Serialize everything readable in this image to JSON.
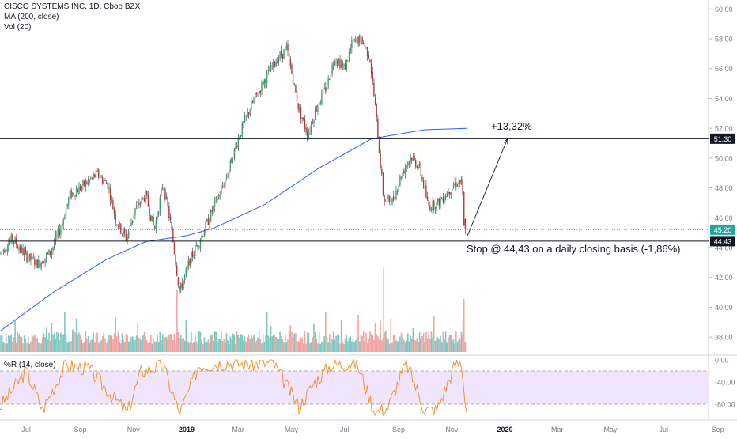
{
  "legend": {
    "title": "CISCO SYSTEMS INC, 1D, Cboe BZX",
    "ma": "MA (200, close)",
    "vol": "Vol (20)",
    "wr": "%R (14, close)"
  },
  "annotations": {
    "target": "+13,32%",
    "stop": "Stop @ 44,43 on a daily closing basis (-1,86%)"
  },
  "chart_data": [
    {
      "type": "candlestick",
      "title": "CISCO SYSTEMS INC, 1D, Cboe BZX",
      "ylim": [
        37.0,
        60.6
      ],
      "y_ticks": [
        "60.00",
        "58.00",
        "56.00",
        "54.00",
        "52.00",
        "50.00",
        "48.00",
        "46.00",
        "44.00",
        "42.00",
        "40.00",
        "38.00"
      ],
      "x_ticks": [
        "Jul",
        "Sep",
        "Nov",
        "2019",
        "Mar",
        "May",
        "Jul",
        "Sep",
        "Nov",
        "2020",
        "Mar",
        "May",
        "Jul",
        "Sep"
      ],
      "price_path": [
        [
          "2018-06-01",
          43.6
        ],
        [
          "2018-06-15",
          44.6
        ],
        [
          "2018-07-01",
          43.4
        ],
        [
          "2018-07-15",
          42.9
        ],
        [
          "2018-07-29",
          43.7
        ],
        [
          "2018-08-10",
          45.4
        ],
        [
          "2018-08-20",
          47.5
        ],
        [
          "2018-09-01",
          48.0
        ],
        [
          "2018-09-20",
          48.9
        ],
        [
          "2018-10-03",
          48.2
        ],
        [
          "2018-10-12",
          45.8
        ],
        [
          "2018-10-24",
          44.6
        ],
        [
          "2018-11-03",
          46.6
        ],
        [
          "2018-11-15",
          47.5
        ],
        [
          "2018-11-25",
          45.2
        ],
        [
          "2018-12-05",
          48.3
        ],
        [
          "2018-12-14",
          45.5
        ],
        [
          "2018-12-24",
          41.0
        ],
        [
          "2019-01-05",
          43.2
        ],
        [
          "2019-01-20",
          45.0
        ],
        [
          "2019-02-01",
          46.7
        ],
        [
          "2019-02-15",
          48.6
        ],
        [
          "2019-03-01",
          51.3
        ],
        [
          "2019-03-15",
          53.4
        ],
        [
          "2019-04-01",
          55.3
        ],
        [
          "2019-04-15",
          56.7
        ],
        [
          "2019-04-26",
          57.3
        ],
        [
          "2019-05-10",
          53.2
        ],
        [
          "2019-05-20",
          51.6
        ],
        [
          "2019-05-31",
          53.6
        ],
        [
          "2019-06-10",
          54.7
        ],
        [
          "2019-06-20",
          56.8
        ],
        [
          "2019-07-01",
          56.0
        ],
        [
          "2019-07-10",
          57.7
        ],
        [
          "2019-07-20",
          58.0
        ],
        [
          "2019-07-30",
          56.8
        ],
        [
          "2019-08-06",
          53.0
        ],
        [
          "2019-08-15",
          47.2
        ],
        [
          "2019-08-25",
          47.1
        ],
        [
          "2019-09-05",
          49.0
        ],
        [
          "2019-09-15",
          50.1
        ],
        [
          "2019-09-25",
          49.4
        ],
        [
          "2019-10-05",
          46.8
        ],
        [
          "2019-10-15",
          46.9
        ],
        [
          "2019-10-25",
          47.6
        ],
        [
          "2019-11-07",
          48.4
        ],
        [
          "2019-11-13",
          48.3
        ],
        [
          "2019-11-15",
          45.3
        ],
        [
          "2019-11-18",
          45.2
        ]
      ],
      "series": [
        {
          "name": "MA (200, close)",
          "color": "#2962ff",
          "points": [
            [
              "2018-06-01",
              38.4
            ],
            [
              "2018-08-01",
              41.0
            ],
            [
              "2018-10-01",
              43.2
            ],
            [
              "2018-11-15",
              44.4
            ],
            [
              "2019-01-01",
              44.8
            ],
            [
              "2019-02-01",
              45.3
            ],
            [
              "2019-04-01",
              46.9
            ],
            [
              "2019-06-01",
              49.3
            ],
            [
              "2019-08-01",
              51.3
            ],
            [
              "2019-10-01",
              51.9
            ],
            [
              "2019-11-18",
              52.0
            ]
          ]
        }
      ],
      "horizontal_lines": [
        {
          "label": "51.30",
          "value": 51.3
        },
        {
          "label": "44.43",
          "value": 44.43
        },
        {
          "label": "45.20",
          "value": 45.2,
          "style": "dotted"
        }
      ],
      "arrow": {
        "from": [
          "2019-11-19",
          44.8
        ],
        "to": [
          "2020-01-04",
          51.3
        ]
      }
    },
    {
      "type": "bar",
      "title": "Vol (20)",
      "note": "daily volume bars, up-days teal, down-days salmon; spikes mid-Dec 2018, Aug 2019, mid-Nov 2019"
    },
    {
      "type": "line",
      "title": "%R (14, close)",
      "ylim": [
        -100,
        0
      ],
      "y_ticks": [
        "0.00",
        "-40.00",
        "-80.00"
      ],
      "band": [
        -80,
        -20
      ],
      "points": [
        [
          "2018-06-01",
          -85
        ],
        [
          "2018-07-01",
          -20
        ],
        [
          "2018-07-20",
          -90
        ],
        [
          "2018-08-15",
          -10
        ],
        [
          "2018-09-10",
          -15
        ],
        [
          "2018-10-05",
          -60
        ],
        [
          "2018-10-25",
          -95
        ],
        [
          "2018-11-10",
          -20
        ],
        [
          "2018-12-05",
          -10
        ],
        [
          "2018-12-24",
          -98
        ],
        [
          "2019-01-15",
          -10
        ],
        [
          "2019-02-15",
          -5
        ],
        [
          "2019-03-15",
          -8
        ],
        [
          "2019-04-10",
          -5
        ],
        [
          "2019-05-10",
          -85
        ],
        [
          "2019-05-28",
          -40
        ],
        [
          "2019-06-15",
          -10
        ],
        [
          "2019-07-15",
          -5
        ],
        [
          "2019-08-05",
          -95
        ],
        [
          "2019-08-20",
          -85
        ],
        [
          "2019-09-10",
          -5
        ],
        [
          "2019-10-01",
          -90
        ],
        [
          "2019-10-15",
          -90
        ],
        [
          "2019-11-05",
          -8
        ],
        [
          "2019-11-12",
          -5
        ],
        [
          "2019-11-18",
          -95
        ]
      ]
    }
  ]
}
